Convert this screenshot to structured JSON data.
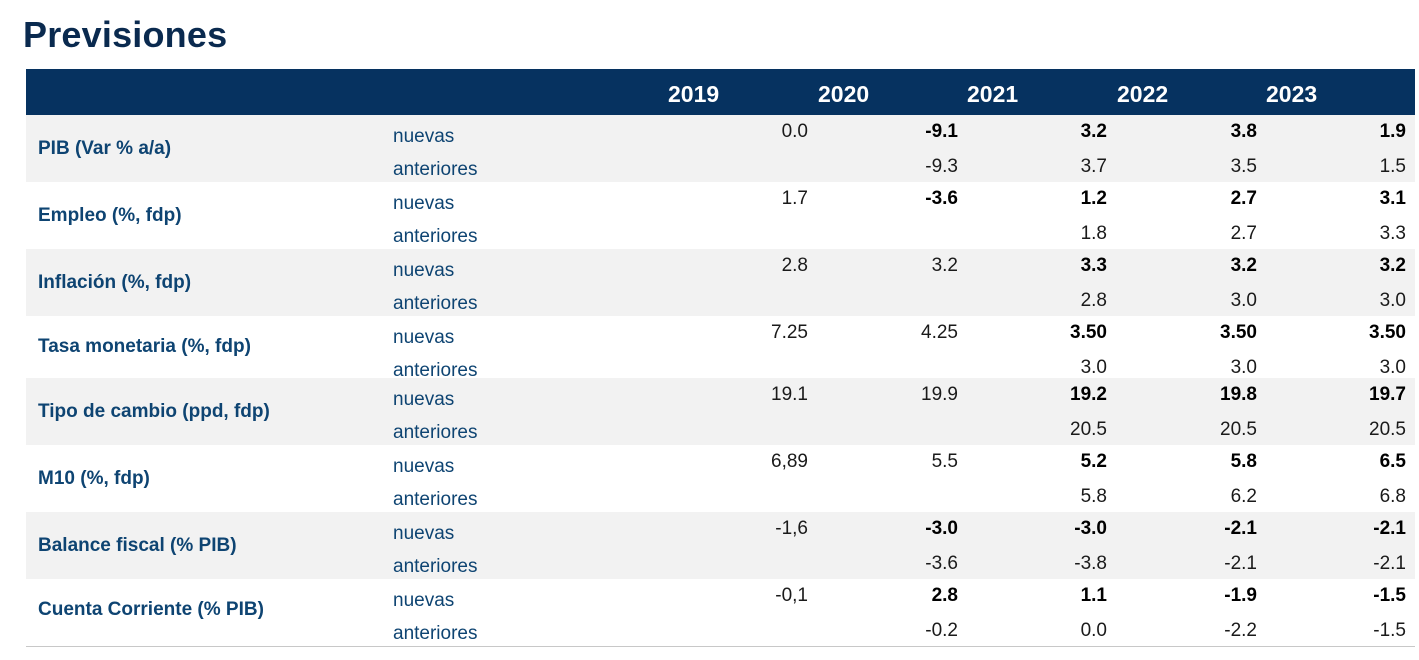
{
  "title": "Previsiones",
  "header": {
    "years": [
      "2019",
      "2020",
      "2021",
      "2022",
      "2023"
    ]
  },
  "labels": {
    "new": "nuevas",
    "old": "anteriores"
  },
  "rows": [
    {
      "label": "PIB (Var % a/a)",
      "nuevas": [
        {
          "v": "0.0",
          "b": false
        },
        {
          "v": "-9.1",
          "b": true
        },
        {
          "v": "3.2",
          "b": true
        },
        {
          "v": "3.8",
          "b": true
        },
        {
          "v": "1.9",
          "b": true
        }
      ],
      "anteriores": [
        "",
        "-9.3",
        "3.7",
        "3.5",
        "1.5"
      ]
    },
    {
      "label": "Empleo (%, fdp)",
      "nuevas": [
        {
          "v": "1.7",
          "b": false
        },
        {
          "v": "-3.6",
          "b": true
        },
        {
          "v": "1.2",
          "b": true
        },
        {
          "v": "2.7",
          "b": true
        },
        {
          "v": "3.1",
          "b": true
        }
      ],
      "anteriores": [
        "",
        "",
        "1.8",
        "2.7",
        "3.3"
      ]
    },
    {
      "label": "Inflación (%, fdp)",
      "nuevas": [
        {
          "v": "2.8",
          "b": false
        },
        {
          "v": "3.2",
          "b": false
        },
        {
          "v": "3.3",
          "b": true
        },
        {
          "v": "3.2",
          "b": true
        },
        {
          "v": "3.2",
          "b": true
        }
      ],
      "anteriores": [
        "",
        "",
        "2.8",
        "3.0",
        "3.0"
      ]
    },
    {
      "label": "Tasa monetaria (%, fdp)",
      "nuevas": [
        {
          "v": "7.25",
          "b": false
        },
        {
          "v": "4.25",
          "b": false
        },
        {
          "v": "3.50",
          "b": true
        },
        {
          "v": "3.50",
          "b": true
        },
        {
          "v": "3.50",
          "b": true
        }
      ],
      "anteriores": [
        "",
        "",
        "3.0",
        "3.0",
        "3.0"
      ]
    },
    {
      "label": "Tipo de cambio (ppd, fdp)",
      "nuevas": [
        {
          "v": "19.1",
          "b": false
        },
        {
          "v": "19.9",
          "b": false
        },
        {
          "v": "19.2",
          "b": true
        },
        {
          "v": "19.8",
          "b": true
        },
        {
          "v": "19.7",
          "b": true
        }
      ],
      "anteriores": [
        "",
        "",
        "20.5",
        "20.5",
        "20.5"
      ]
    },
    {
      "label": "M10 (%, fdp)",
      "nuevas": [
        {
          "v": "6,89",
          "b": false
        },
        {
          "v": "5.5",
          "b": false
        },
        {
          "v": "5.2",
          "b": true
        },
        {
          "v": "5.8",
          "b": true
        },
        {
          "v": "6.5",
          "b": true
        }
      ],
      "anteriores": [
        "",
        "",
        "5.8",
        "6.2",
        "6.8"
      ]
    },
    {
      "label": "Balance fiscal (% PIB)",
      "nuevas": [
        {
          "v": "-1,6",
          "b": false
        },
        {
          "v": "-3.0",
          "b": true
        },
        {
          "v": "-3.0",
          "b": true
        },
        {
          "v": "-2.1",
          "b": true
        },
        {
          "v": "-2.1",
          "b": true
        }
      ],
      "anteriores": [
        "",
        "-3.6",
        "-3.8",
        "-2.1",
        "-2.1"
      ]
    },
    {
      "label": "Cuenta Corriente (% PIB)",
      "nuevas": [
        {
          "v": "-0,1",
          "b": false
        },
        {
          "v": "2.8",
          "b": true
        },
        {
          "v": "1.1",
          "b": true
        },
        {
          "v": "-1.9",
          "b": true
        },
        {
          "v": "-1.5",
          "b": true
        }
      ],
      "anteriores": [
        "",
        "-0.2",
        "0.0",
        "-2.2",
        "-1.5"
      ]
    }
  ]
}
